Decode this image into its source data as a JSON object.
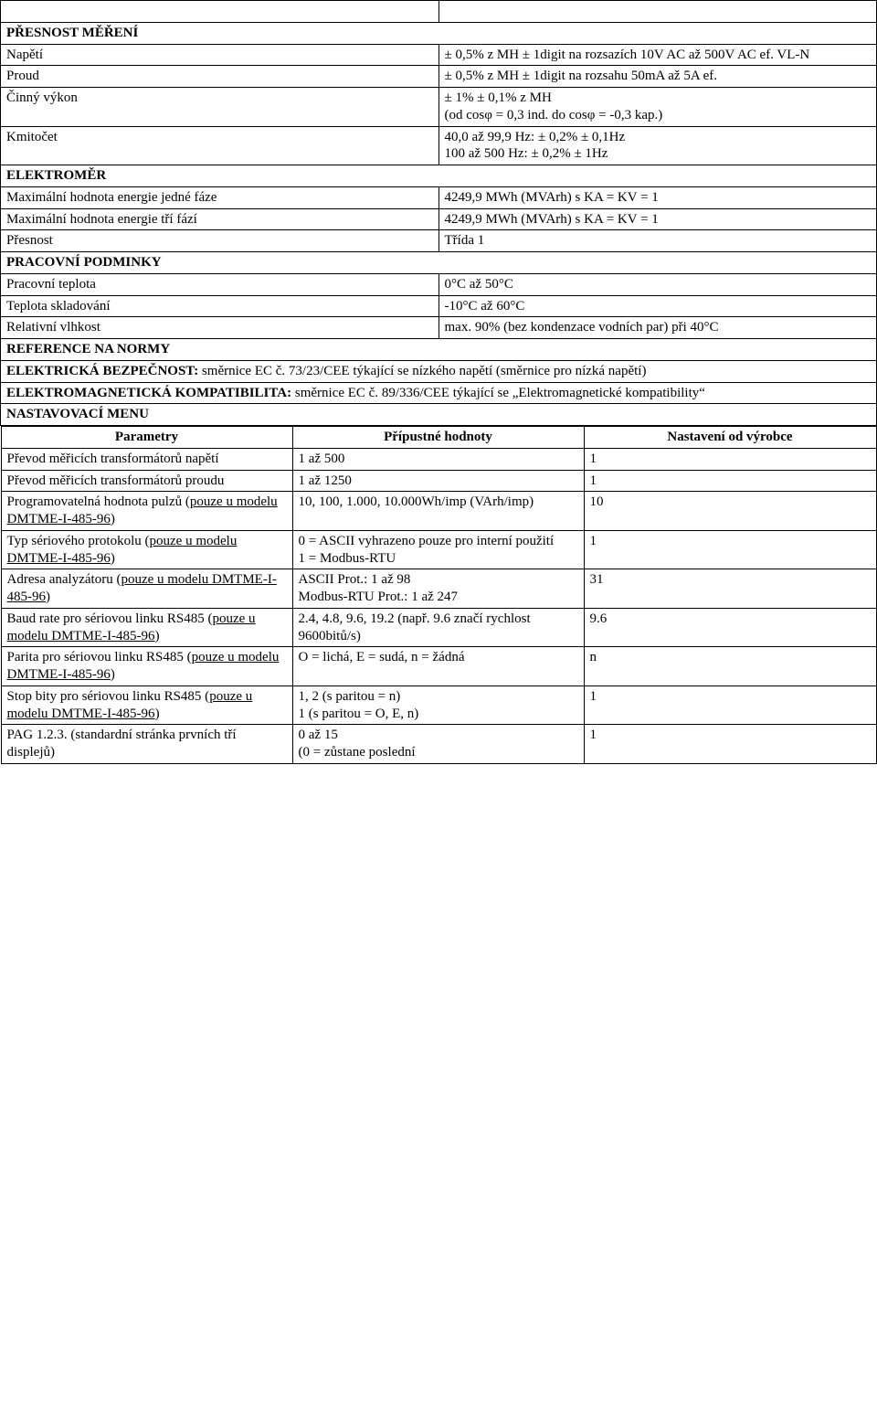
{
  "sections": {
    "presnost_mereni": "PŘESNOST MĚŘENÍ",
    "elektromer": "ELEKTROMĚR",
    "pracovni_podminky": "PRACOVNÍ PODMINKY",
    "reference_na_normy": "REFERENCE NA NORMY",
    "nastavovaci_menu": "NASTAVOVACÍ MENU"
  },
  "rows": {
    "napeti": {
      "label": "Napětí",
      "value": "± 0,5% z MH ± 1digit na rozsazích 10V AC až 500V AC ef. VL-N"
    },
    "proud": {
      "label": "Proud",
      "value": "± 0,5% z MH ± 1digit na rozsahu 50mA až 5A ef."
    },
    "cinny_vykon": {
      "label": "Činný výkon",
      "value": "± 1% ± 0,1% z MH\n(od cosφ = 0,3 ind. do cosφ = -0,3 kap.)"
    },
    "kmitocet": {
      "label": "Kmitočet",
      "value": "40,0 až 99,9 Hz: ± 0,2% ± 0,1Hz\n100 až 500 Hz:   ± 0,2% ± 1Hz"
    },
    "max_energie_jedne_faze": {
      "label": "Maximální hodnota energie jedné fáze",
      "value": "4249,9 MWh (MVArh) s KA = KV = 1"
    },
    "max_energie_tri_fazi": {
      "label": "Maximální hodnota energie tří fází",
      "value": "4249,9 MWh (MVArh) s KA = KV = 1"
    },
    "presnost": {
      "label": "Přesnost",
      "value": "Třída 1"
    },
    "pracovni_teplota": {
      "label": "Pracovní teplota",
      "value": "0°C až 50°C"
    },
    "teplota_skladovani": {
      "label": "Teplota skladování",
      "value": "-10°C až 60°C"
    },
    "relativni_vlhkost": {
      "label": "Relativní vlhkost",
      "value": "max. 90% (bez kondenzace vodních par) při 40°C"
    }
  },
  "compliance": {
    "elektricka_bezpecnost": {
      "title": "ELEKTRICKÁ BEZPEČNOST:",
      "text": " směrnice EC č. 73/23/CEE týkající se nízkého napětí (směrnice pro nízká napětí)"
    },
    "emc": {
      "title": "ELEKTROMAGNETICKÁ KOMPATIBILITA:",
      "text": " směrnice EC č. 89/336/CEE týkající se „Elektromagnetické kompatibility“"
    }
  },
  "menu": {
    "headers": {
      "param": "Parametry",
      "values": "Přípustné hodnoty",
      "default": "Nastavení od výrobce"
    },
    "rows": [
      {
        "param": "Převod měřicích transformátorů napětí",
        "values": "1 až 500",
        "default": "1",
        "underline_part": ""
      },
      {
        "param": "Převod měřicích transformátorů proudu",
        "values": "1 až 1250",
        "default": "1",
        "underline_part": ""
      },
      {
        "param_pre": "Programovatelná hodnota pulzů (",
        "param_under": "pouze u modelu DMTME-I-485-96",
        "param_post": ")",
        "values": "10, 100, 1.000, 10.000Wh/imp (VArh/imp)",
        "default": "10"
      },
      {
        "param_pre": "Typ sériového protokolu (",
        "param_under": "pouze u modelu DMTME-I-485-96",
        "param_post": ")",
        "values": "0 = ASCII vyhrazeno pouze pro interní použití\n1 =  Modbus-RTU",
        "default": "1"
      },
      {
        "param_pre": "Adresa analyzátoru (",
        "param_under": "pouze u modelu DMTME-I-485-96",
        "param_post": ")",
        "values": "ASCII Prot.: 1 až 98\nModbus-RTU Prot.: 1 až 247",
        "default": "31"
      },
      {
        "param_pre": "Baud rate pro sériovou linku RS485 (",
        "param_under": "pouze u modelu DMTME-I-485-96",
        "param_post": ")",
        "values": "2.4, 4.8, 9.6, 19.2 (např. 9.6 značí rychlost 9600bitů/s)",
        "default": "9.6"
      },
      {
        "param_pre": "Parita pro sériovou linku RS485 (",
        "param_under": "pouze u modelu DMTME-I-485-96",
        "param_post": ")",
        "values": "O = lichá, E = sudá, n = žádná",
        "default": "n"
      },
      {
        "param_pre": "Stop bity pro sériovou linku RS485 (",
        "param_under": "pouze u modelu DMTME-I-485-96",
        "param_post": ")",
        "values": "1, 2 (s paritou = n)\n1     (s paritou = O, E, n)",
        "default": "1"
      },
      {
        "param": "PAG 1.2.3. (standardní stránka prvních tří displejů)",
        "values": "0 až 15\n(0 = zůstane poslední",
        "default": "1",
        "underline_part": ""
      }
    ]
  },
  "style": {
    "font_family": "Times New Roman",
    "font_size_pt": 12,
    "border_color": "#000000",
    "background_color": "#ffffff",
    "text_color": "#000000"
  }
}
